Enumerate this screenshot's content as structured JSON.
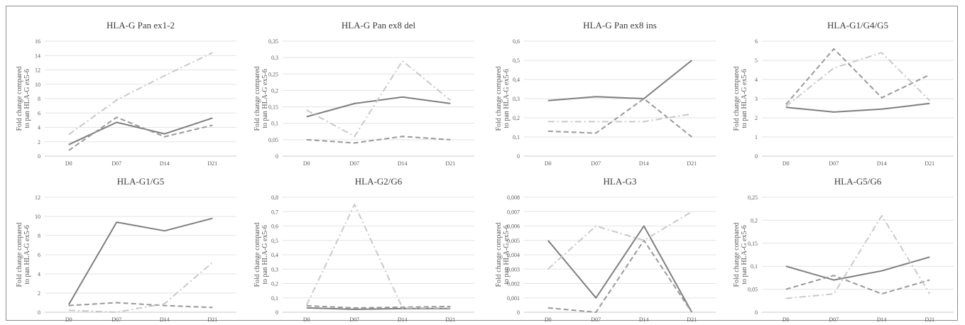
{
  "figure": {
    "y_label_line1": "Fold change  compared",
    "y_label_line2": "to pan HLA-G ex5-6"
  },
  "chart_data": [
    {
      "type": "line",
      "title": "HLA-G Pan ex1-2",
      "categories": [
        "D0",
        "D07",
        "D14",
        "D21"
      ],
      "ylim": [
        0,
        16
      ],
      "yticks": [
        "0",
        "2",
        "4",
        "6",
        "8",
        "10",
        "12",
        "14",
        "16"
      ],
      "grid": true,
      "series": [
        {
          "style": "solid",
          "color": "#7f7f7f",
          "values": [
            1.6,
            4.7,
            3.1,
            5.3
          ]
        },
        {
          "style": "dashed",
          "color": "#999999",
          "values": [
            0.8,
            5.4,
            2.7,
            4.3
          ]
        },
        {
          "style": "dash-dot",
          "color": "#c9c9c9",
          "values": [
            3.0,
            7.8,
            11.2,
            14.4
          ]
        }
      ]
    },
    {
      "type": "line",
      "title": "HLA-G Pan ex8 del",
      "categories": [
        "D0",
        "D07",
        "D14",
        "D21"
      ],
      "ylim": [
        0,
        0.35
      ],
      "yticks": [
        "0",
        "0,05",
        "0,1",
        "0,15",
        "0,2",
        "0,25",
        "0,3",
        "0,35"
      ],
      "grid": true,
      "series": [
        {
          "style": "solid",
          "color": "#7f7f7f",
          "values": [
            0.12,
            0.16,
            0.18,
            0.16
          ]
        },
        {
          "style": "dashed",
          "color": "#999999",
          "values": [
            0.05,
            0.04,
            0.06,
            0.05
          ]
        },
        {
          "style": "dash-dot",
          "color": "#c9c9c9",
          "values": [
            0.14,
            0.06,
            0.29,
            0.17
          ]
        }
      ]
    },
    {
      "type": "line",
      "title": "HLA-G Pan ex8 ins",
      "categories": [
        "D0",
        "D07",
        "D14",
        "D21"
      ],
      "ylim": [
        0,
        0.6
      ],
      "yticks": [
        "0",
        "0,1",
        "0,2",
        "0,3",
        "0,4",
        "0,5",
        "0,6"
      ],
      "grid": true,
      "series": [
        {
          "style": "solid",
          "color": "#7f7f7f",
          "values": [
            0.29,
            0.31,
            0.3,
            0.5
          ]
        },
        {
          "style": "dashed",
          "color": "#999999",
          "values": [
            0.13,
            0.12,
            0.3,
            0.1
          ]
        },
        {
          "style": "dash-dot",
          "color": "#c9c9c9",
          "values": [
            0.18,
            0.18,
            0.18,
            0.22
          ]
        }
      ]
    },
    {
      "type": "line",
      "title": "HLA-G1/G4/G5",
      "categories": [
        "D0",
        "D07",
        "D14",
        "D21"
      ],
      "ylim": [
        0,
        6
      ],
      "yticks": [
        "0",
        "1",
        "2",
        "3",
        "4",
        "5",
        "6"
      ],
      "grid": true,
      "series": [
        {
          "style": "solid",
          "color": "#7f7f7f",
          "values": [
            2.55,
            2.3,
            2.45,
            2.75
          ]
        },
        {
          "style": "dashed",
          "color": "#999999",
          "values": [
            2.7,
            5.6,
            3.05,
            4.25
          ]
        },
        {
          "style": "dash-dot",
          "color": "#c9c9c9",
          "values": [
            2.6,
            4.6,
            5.4,
            2.9
          ]
        }
      ]
    },
    {
      "type": "line",
      "title": "HLA-G1/G5",
      "categories": [
        "D0",
        "D07",
        "D14",
        "D21"
      ],
      "ylim": [
        0,
        12
      ],
      "yticks": [
        "0",
        "2",
        "4",
        "6",
        "8",
        "10",
        "12"
      ],
      "grid": true,
      "series": [
        {
          "style": "solid",
          "color": "#7f7f7f",
          "values": [
            0.8,
            9.4,
            8.5,
            9.8
          ]
        },
        {
          "style": "dashed",
          "color": "#999999",
          "values": [
            0.7,
            1.0,
            0.7,
            0.5
          ]
        },
        {
          "style": "dash-dot",
          "color": "#c9c9c9",
          "values": [
            0.2,
            0.0,
            0.9,
            5.2
          ]
        }
      ]
    },
    {
      "type": "line",
      "title": "HLA-G2/G6",
      "categories": [
        "D0",
        "D07",
        "D14",
        "D21"
      ],
      "ylim": [
        0,
        0.8
      ],
      "yticks": [
        "0",
        "0,1",
        "0,2",
        "0,3",
        "0,4",
        "0,5",
        "0,6",
        "0,7",
        "0,8"
      ],
      "grid": true,
      "series": [
        {
          "style": "solid",
          "color": "#7f7f7f",
          "values": [
            0.03,
            0.02,
            0.025,
            0.025
          ]
        },
        {
          "style": "dashed",
          "color": "#999999",
          "values": [
            0.045,
            0.03,
            0.035,
            0.04
          ]
        },
        {
          "style": "dash-dot",
          "color": "#c9c9c9",
          "values": [
            0.05,
            0.75,
            0.03,
            0.03
          ]
        }
      ]
    },
    {
      "type": "line",
      "title": "HLA-G3",
      "categories": [
        "D0",
        "D07",
        "D14",
        "D21"
      ],
      "ylim": [
        0,
        0.008
      ],
      "yticks": [
        "0",
        "0,001",
        "0,002",
        "0,003",
        "0,004",
        "0,005",
        "0,006",
        "0,007",
        "0,008"
      ],
      "grid": true,
      "series": [
        {
          "style": "solid",
          "color": "#7f7f7f",
          "values": [
            0.005,
            0.001,
            0.006,
            0.0
          ]
        },
        {
          "style": "dashed",
          "color": "#999999",
          "values": [
            0.0003,
            0.0,
            0.005,
            0.0
          ]
        },
        {
          "style": "dash-dot",
          "color": "#c9c9c9",
          "values": [
            0.003,
            0.006,
            0.005,
            0.007
          ]
        }
      ]
    },
    {
      "type": "line",
      "title": "HLA-G5/G6",
      "categories": [
        "D0",
        "D07",
        "D14",
        "D21"
      ],
      "ylim": [
        0,
        0.25
      ],
      "yticks": [
        "0",
        "0,05",
        "0,1",
        "0,15",
        "0,2",
        "0,25"
      ],
      "grid": true,
      "series": [
        {
          "style": "solid",
          "color": "#7f7f7f",
          "values": [
            0.1,
            0.07,
            0.09,
            0.12
          ]
        },
        {
          "style": "dashed",
          "color": "#999999",
          "values": [
            0.05,
            0.08,
            0.04,
            0.07
          ]
        },
        {
          "style": "dash-dot",
          "color": "#c9c9c9",
          "values": [
            0.03,
            0.04,
            0.21,
            0.04
          ]
        }
      ]
    }
  ]
}
